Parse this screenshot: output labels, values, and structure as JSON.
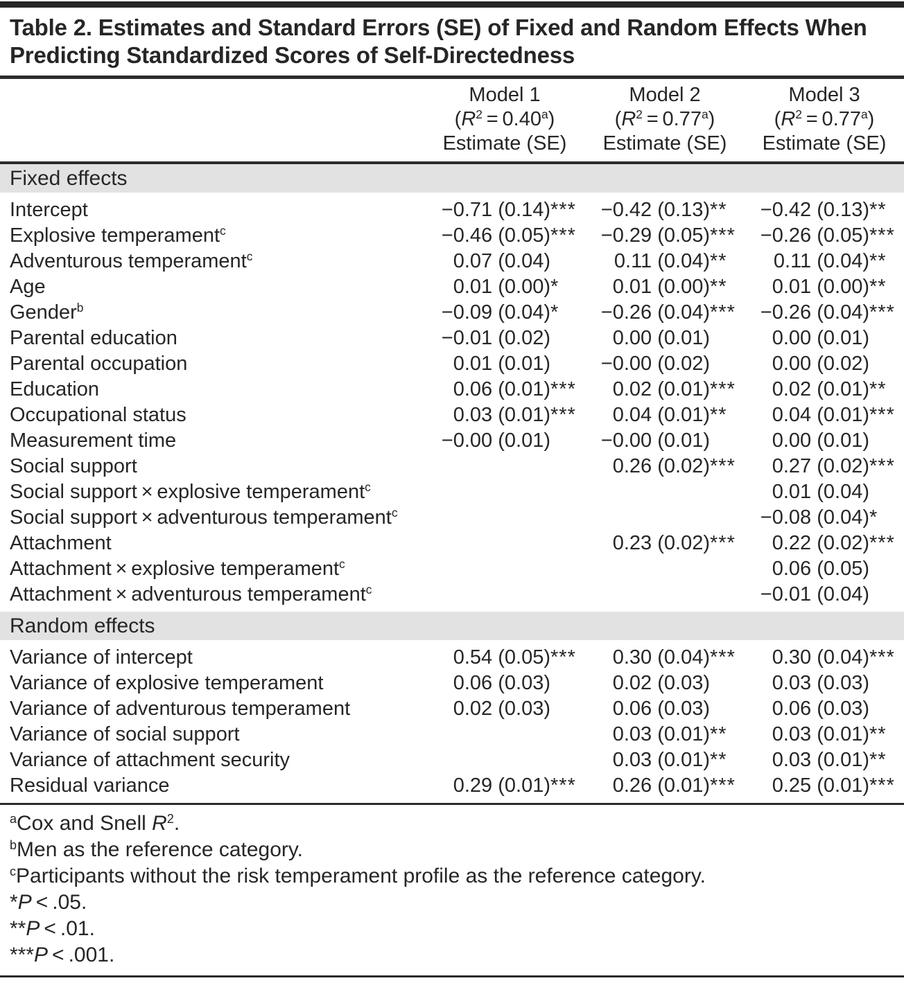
{
  "colors": {
    "section_band": "#e2e2e2",
    "text": "#262626",
    "rule": "#2b2b2b"
  },
  "title": "Table 2. Estimates and Standard Errors (SE) of Fixed and Random Effects When Predicting Standardized Scores of Self-Directedness",
  "header": {
    "models": [
      {
        "name": "Model 1",
        "r2": {
          "open": "(",
          "symbol": "R",
          "sup": "2",
          "eq": " = ",
          "value": "0.40",
          "marker": "a",
          "close": ")"
        },
        "estimate": "Estimate (SE)"
      },
      {
        "name": "Model 2",
        "r2": {
          "open": "(",
          "symbol": "R",
          "sup": "2",
          "eq": " = ",
          "value": "0.77",
          "marker": "a",
          "close": ")"
        },
        "estimate": "Estimate (SE)"
      },
      {
        "name": "Model 3",
        "r2": {
          "open": "(",
          "symbol": "R",
          "sup": "2",
          "eq": " = ",
          "value": "0.77",
          "marker": "a",
          "close": ")"
        },
        "estimate": "Estimate (SE)"
      }
    ]
  },
  "table": {
    "sections": [
      {
        "label": "Fixed effects",
        "rows": [
          {
            "label": "Intercept",
            "sup": "",
            "cells": [
              {
                "value": "−0.71 (0.14)",
                "stars": "***"
              },
              {
                "value": "−0.42 (0.13)",
                "stars": "**"
              },
              {
                "value": "−0.42 (0.13)",
                "stars": "**"
              }
            ]
          },
          {
            "label": "Explosive temperament",
            "sup": "c",
            "cells": [
              {
                "value": "−0.46 (0.05)",
                "stars": "***"
              },
              {
                "value": "−0.29 (0.05)",
                "stars": "***"
              },
              {
                "value": "−0.26 (0.05)",
                "stars": "***"
              }
            ]
          },
          {
            "label": "Adventurous temperament",
            "sup": "c",
            "cells": [
              {
                "value": "0.07 (0.04)",
                "stars": ""
              },
              {
                "value": "0.11 (0.04)",
                "stars": "**"
              },
              {
                "value": "0.11 (0.04)",
                "stars": "**"
              }
            ]
          },
          {
            "label": "Age",
            "sup": "",
            "cells": [
              {
                "value": "0.01 (0.00)",
                "stars": "*"
              },
              {
                "value": "0.01 (0.00)",
                "stars": "**"
              },
              {
                "value": "0.01 (0.00)",
                "stars": "**"
              }
            ]
          },
          {
            "label": "Gender",
            "sup": "b",
            "cells": [
              {
                "value": "−0.09 (0.04)",
                "stars": "*"
              },
              {
                "value": "−0.26 (0.04)",
                "stars": "***"
              },
              {
                "value": "−0.26 (0.04)",
                "stars": "***"
              }
            ]
          },
          {
            "label": "Parental education",
            "sup": "",
            "cells": [
              {
                "value": "−0.01 (0.02)",
                "stars": ""
              },
              {
                "value": "0.00 (0.01)",
                "stars": ""
              },
              {
                "value": "0.00 (0.01)",
                "stars": ""
              }
            ]
          },
          {
            "label": "Parental occupation",
            "sup": "",
            "cells": [
              {
                "value": "0.01 (0.01)",
                "stars": ""
              },
              {
                "value": "−0.00 (0.02)",
                "stars": ""
              },
              {
                "value": "0.00 (0.02)",
                "stars": ""
              }
            ]
          },
          {
            "label": "Education",
            "sup": "",
            "cells": [
              {
                "value": "0.06 (0.01)",
                "stars": "***"
              },
              {
                "value": "0.02 (0.01)",
                "stars": "***"
              },
              {
                "value": "0.02 (0.01)",
                "stars": "**"
              }
            ]
          },
          {
            "label": "Occupational status",
            "sup": "",
            "cells": [
              {
                "value": "0.03 (0.01)",
                "stars": "***"
              },
              {
                "value": "0.04 (0.01)",
                "stars": "**"
              },
              {
                "value": "0.04 (0.01)",
                "stars": "***"
              }
            ]
          },
          {
            "label": "Measurement time",
            "sup": "",
            "cells": [
              {
                "value": "−0.00 (0.01)",
                "stars": ""
              },
              {
                "value": "−0.00 (0.01)",
                "stars": ""
              },
              {
                "value": "0.00 (0.01)",
                "stars": ""
              }
            ]
          },
          {
            "label": "Social support",
            "sup": "",
            "cells": [
              {
                "value": "",
                "stars": ""
              },
              {
                "value": "0.26 (0.02)",
                "stars": "***"
              },
              {
                "value": "0.27 (0.02)",
                "stars": "***"
              }
            ]
          },
          {
            "label": "Social support × explosive temperament",
            "sup": "c",
            "cells": [
              {
                "value": "",
                "stars": ""
              },
              {
                "value": "",
                "stars": ""
              },
              {
                "value": "0.01 (0.04)",
                "stars": ""
              }
            ]
          },
          {
            "label": "Social support × adventurous temperament",
            "sup": "c",
            "cells": [
              {
                "value": "",
                "stars": ""
              },
              {
                "value": "",
                "stars": ""
              },
              {
                "value": "−0.08 (0.04)",
                "stars": "*"
              }
            ]
          },
          {
            "label": "Attachment",
            "sup": "",
            "cells": [
              {
                "value": "",
                "stars": ""
              },
              {
                "value": "0.23 (0.02)",
                "stars": "***"
              },
              {
                "value": "0.22 (0.02)",
                "stars": "***"
              }
            ]
          },
          {
            "label": "Attachment × explosive temperament",
            "sup": "c",
            "cells": [
              {
                "value": "",
                "stars": ""
              },
              {
                "value": "",
                "stars": ""
              },
              {
                "value": "0.06 (0.05)",
                "stars": ""
              }
            ]
          },
          {
            "label": "Attachment × adventurous temperament",
            "sup": "c",
            "cells": [
              {
                "value": "",
                "stars": ""
              },
              {
                "value": "",
                "stars": ""
              },
              {
                "value": "−0.01 (0.04)",
                "stars": ""
              }
            ]
          }
        ]
      },
      {
        "label": "Random effects",
        "rows": [
          {
            "label": "Variance of intercept",
            "sup": "",
            "cells": [
              {
                "value": "0.54 (0.05)",
                "stars": "***"
              },
              {
                "value": "0.30 (0.04)",
                "stars": "***"
              },
              {
                "value": "0.30 (0.04)",
                "stars": "***"
              }
            ]
          },
          {
            "label": "Variance of explosive temperament",
            "sup": "",
            "cells": [
              {
                "value": "0.06 (0.03)",
                "stars": ""
              },
              {
                "value": "0.02 (0.03)",
                "stars": ""
              },
              {
                "value": "0.03 (0.03)",
                "stars": ""
              }
            ]
          },
          {
            "label": "Variance of adventurous temperament",
            "sup": "",
            "cells": [
              {
                "value": "0.02 (0.03)",
                "stars": ""
              },
              {
                "value": "0.06 (0.03)",
                "stars": ""
              },
              {
                "value": "0.06 (0.03)",
                "stars": ""
              }
            ]
          },
          {
            "label": "Variance of social support",
            "sup": "",
            "cells": [
              {
                "value": "",
                "stars": ""
              },
              {
                "value": "0.03 (0.01)",
                "stars": "**"
              },
              {
                "value": "0.03 (0.01)",
                "stars": "**"
              }
            ]
          },
          {
            "label": "Variance of attachment security",
            "sup": "",
            "cells": [
              {
                "value": "",
                "stars": ""
              },
              {
                "value": "0.03 (0.01)",
                "stars": "**"
              },
              {
                "value": "0.03 (0.01)",
                "stars": "**"
              }
            ]
          },
          {
            "label": "Residual variance",
            "sup": "",
            "cells": [
              {
                "value": "0.29 (0.01)",
                "stars": "***"
              },
              {
                "value": "0.26 (0.01)",
                "stars": "***"
              },
              {
                "value": "0.25 (0.01)",
                "stars": "***"
              }
            ]
          }
        ]
      }
    ]
  },
  "footnotes": [
    {
      "segments": [
        {
          "t": "a",
          "s": "sup"
        },
        {
          "t": "Cox and Snell ",
          "s": "plain"
        },
        {
          "t": "R",
          "s": "italic"
        },
        {
          "t": "2",
          "s": "sup"
        },
        {
          "t": ".",
          "s": "plain"
        }
      ]
    },
    {
      "segments": [
        {
          "t": "b",
          "s": "sup"
        },
        {
          "t": "Men as the reference category.",
          "s": "plain"
        }
      ]
    },
    {
      "segments": [
        {
          "t": "c",
          "s": "sup"
        },
        {
          "t": "Participants without the risk temperament profile as the reference category.",
          "s": "plain"
        }
      ]
    },
    {
      "segments": [
        {
          "t": "*",
          "s": "plain"
        },
        {
          "t": "P",
          "s": "italic"
        },
        {
          "t": " < .05.",
          "s": "plain"
        }
      ]
    },
    {
      "segments": [
        {
          "t": "**",
          "s": "plain"
        },
        {
          "t": "P",
          "s": "italic"
        },
        {
          "t": " < .01.",
          "s": "plain"
        }
      ]
    },
    {
      "segments": [
        {
          "t": "***",
          "s": "plain"
        },
        {
          "t": "P",
          "s": "italic"
        },
        {
          "t": " < .001.",
          "s": "plain"
        }
      ]
    }
  ]
}
